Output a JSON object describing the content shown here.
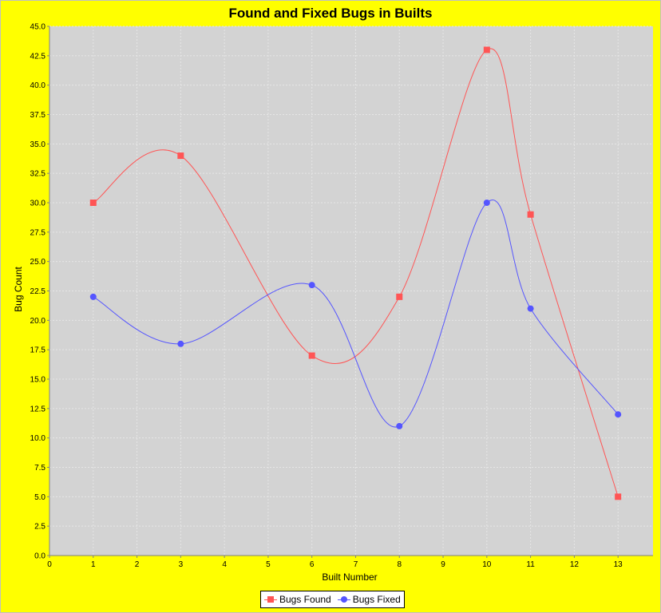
{
  "chart_data": {
    "type": "line",
    "title": "Found and Fixed Bugs in Builts",
    "xlabel": "Built Number",
    "ylabel": "Bug Count",
    "xlim": [
      0,
      13.8
    ],
    "ylim": [
      0,
      45
    ],
    "x_ticks": [
      0,
      1,
      2,
      3,
      4,
      5,
      6,
      7,
      8,
      9,
      10,
      11,
      12,
      13
    ],
    "y_ticks": [
      0.0,
      2.5,
      5.0,
      7.5,
      10.0,
      12.5,
      15.0,
      17.5,
      20.0,
      22.5,
      25.0,
      27.5,
      30.0,
      32.5,
      35.0,
      37.5,
      40.0,
      42.5,
      45.0
    ],
    "grid": true,
    "smooth": true,
    "legend_position": "bottom-center",
    "background": "#ffff00",
    "plot_background": "#d3d3d3",
    "series": [
      {
        "name": "Bugs Found",
        "color": "#ff5555",
        "marker": "square",
        "points": [
          [
            1,
            30
          ],
          [
            3,
            34
          ],
          [
            6,
            17
          ],
          [
            8,
            22
          ],
          [
            10,
            43
          ],
          [
            11,
            29
          ],
          [
            13,
            5
          ]
        ]
      },
      {
        "name": "Bugs Fixed",
        "color": "#5555ff",
        "marker": "circle",
        "points": [
          [
            1,
            22
          ],
          [
            3,
            18
          ],
          [
            6,
            23
          ],
          [
            8,
            11
          ],
          [
            10,
            30
          ],
          [
            11,
            21
          ],
          [
            13,
            12
          ]
        ]
      }
    ]
  }
}
